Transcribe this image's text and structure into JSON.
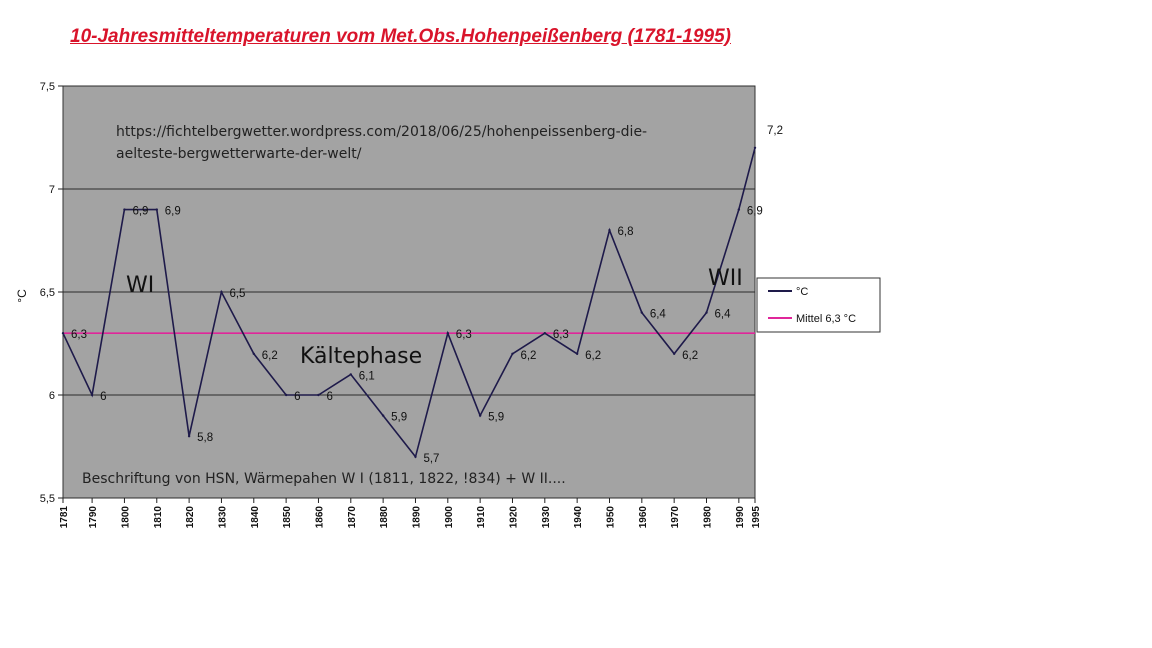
{
  "title": "10-Jahresmitteltemperaturen vom Met.Obs.Hohenpeißenberg (1781-1995)",
  "chart_data": {
    "type": "line",
    "ylabel": "°C",
    "ylim": [
      5.5,
      7.5
    ],
    "yticks": [
      "5,5",
      "6",
      "6,5",
      "7",
      "7,5"
    ],
    "yticks_values": [
      5.5,
      6.0,
      6.5,
      7.0,
      7.5
    ],
    "categories": [
      "1781",
      "1790",
      "1800",
      "1810",
      "1820",
      "1830",
      "1840",
      "1850",
      "1860",
      "1870",
      "1880",
      "1890",
      "1900",
      "1910",
      "1920",
      "1930",
      "1940",
      "1950",
      "1960",
      "1970",
      "1980",
      "1990",
      "1995"
    ],
    "grid": "horizontal",
    "series": [
      {
        "name": "°C",
        "color": "#1e1a4a",
        "values": [
          6.3,
          6.0,
          6.9,
          6.9,
          5.8,
          6.5,
          6.2,
          6.0,
          6.0,
          6.1,
          5.9,
          5.7,
          6.3,
          5.9,
          6.2,
          6.3,
          6.2,
          6.8,
          6.4,
          6.2,
          6.4,
          6.9,
          7.2
        ],
        "labels": [
          "6,3",
          "6",
          "6,9",
          "6,9",
          "5,8",
          "6,5",
          "6,2",
          "6",
          "6",
          "6,1",
          "5,9",
          "5,7",
          "6,3",
          "5,9",
          "6,2",
          "6,3",
          "6,2",
          "6,8",
          "6,4",
          "6,2",
          "6,4",
          "6,9",
          "7,2"
        ]
      },
      {
        "name": "Mittel 6,3 °C",
        "color": "#e0269a",
        "constant": 6.3
      }
    ],
    "legend_position": "right",
    "annotations": {
      "url_line1": "https://fichtelbergwetter.wordpress.com/2018/06/25/hohenpeissenberg-die-",
      "url_line2": "aelteste-bergwetterwarte-der-welt/",
      "w1": "WI",
      "w2": "WII",
      "cold": "Kältephase",
      "caption": "Beschriftung von HSN,  Wärmepahen W I (1811, 1822, !834) + W II...."
    }
  },
  "colors": {
    "plot_bg": "#a3a3a3",
    "grid": "#2b2b2b",
    "title": "#d9142b"
  }
}
